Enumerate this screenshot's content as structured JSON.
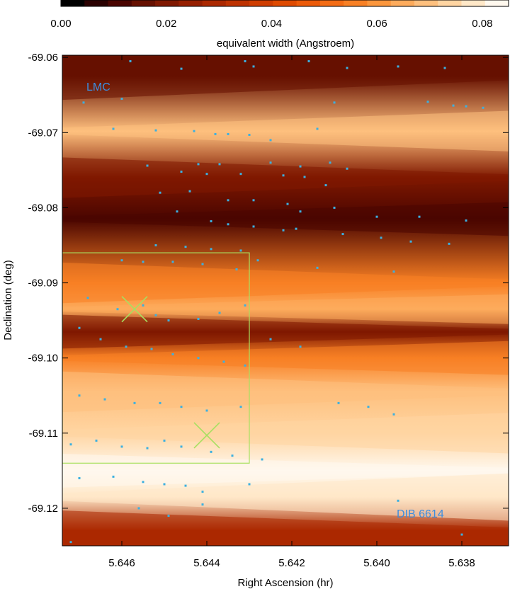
{
  "chart_data": {
    "type": "heatmap",
    "colorbar": {
      "label": "equivalent width (Angstroem)",
      "range": [
        0.0,
        0.085
      ],
      "ticks": [
        0.0,
        0.02,
        0.04,
        0.06,
        0.08
      ],
      "tick_labels": [
        "0.00",
        "0.02",
        "0.04",
        "0.06",
        "0.08"
      ],
      "colors": [
        "#000000",
        "#2a0000",
        "#4a0500",
        "#661000",
        "#7f1800",
        "#961f00",
        "#ab2800",
        "#be3200",
        "#cf3d00",
        "#df4a00",
        "#ec5a08",
        "#f46c14",
        "#f88024",
        "#fb963c",
        "#fdab5c",
        "#fec07e",
        "#ffd5a2",
        "#ffe8c8",
        "#fff8ee"
      ]
    },
    "xlabel": "Right Ascension (hr)",
    "ylabel": "Declination (deg)",
    "xlim": [
      5.6474,
      5.6369
    ],
    "ylim": [
      -69.125,
      -69.0597
    ],
    "x_ticks": [
      5.646,
      5.644,
      5.642,
      5.64,
      5.638
    ],
    "x_tick_labels": [
      "5.646",
      "5.644",
      "5.642",
      "5.640",
      "5.638"
    ],
    "y_ticks": [
      -69.06,
      -69.07,
      -69.08,
      -69.09,
      -69.1,
      -69.11,
      -69.12
    ],
    "y_tick_labels": [
      "-69.06",
      "-69.07",
      "-69.08",
      "-69.09",
      "-69.10",
      "-69.11",
      "-69.12"
    ],
    "annotations": {
      "region": "LMC",
      "line": "DIB 6614"
    },
    "box": {
      "ra": [
        5.6474,
        5.643
      ],
      "dec": [
        -69.114,
        -69.086
      ]
    },
    "crosses": [
      {
        "ra": 5.6457,
        "dec": -69.0935
      },
      {
        "ra": 5.644,
        "dec": -69.1103
      }
    ],
    "colors": {
      "points": "#3cb0e0",
      "annotation": "#3c8ee0",
      "box": "#a8e060",
      "cross": "#a8e060"
    },
    "bands": [
      {
        "dec": -69.0625,
        "ew": 0.012,
        "w": 0.0035
      },
      {
        "dec": -69.0698,
        "ew": 0.072,
        "w": 0.003
      },
      {
        "dec": -69.076,
        "ew": 0.018,
        "w": 0.003
      },
      {
        "dec": -69.0815,
        "ew": 0.01,
        "w": 0.0025
      },
      {
        "dec": -69.09,
        "ew": 0.055,
        "w": 0.003
      },
      {
        "dec": -69.0935,
        "ew": 0.068,
        "w": 0.0022
      },
      {
        "dec": -69.0965,
        "ew": 0.02,
        "w": 0.0025
      },
      {
        "dec": -69.1,
        "ew": 0.058,
        "w": 0.0025
      },
      {
        "dec": -69.1045,
        "ew": 0.07,
        "w": 0.003
      },
      {
        "dec": -69.11,
        "ew": 0.075,
        "w": 0.003
      },
      {
        "dec": -69.115,
        "ew": 0.083,
        "w": 0.0025
      },
      {
        "dec": -69.1185,
        "ew": 0.082,
        "w": 0.0035
      },
      {
        "dec": -69.123,
        "ew": 0.03,
        "w": 0.003
      }
    ],
    "fibers": [
      [
        5.6458,
        -69.0605
      ],
      [
        5.6431,
        -69.0605
      ],
      [
        5.6416,
        -69.0605
      ],
      [
        5.6446,
        -69.0615
      ],
      [
        5.6429,
        -69.0612
      ],
      [
        5.6407,
        -69.0614
      ],
      [
        5.6395,
        -69.0612
      ],
      [
        5.6384,
        -69.0614
      ],
      [
        5.6469,
        -69.066
      ],
      [
        5.646,
        -69.0655
      ],
      [
        5.641,
        -69.066
      ],
      [
        5.6388,
        -69.0659
      ],
      [
        5.6382,
        -69.0664
      ],
      [
        5.6379,
        -69.0665
      ],
      [
        5.6375,
        -69.0667
      ],
      [
        5.6462,
        -69.0695
      ],
      [
        5.6452,
        -69.0697
      ],
      [
        5.6443,
        -69.0698
      ],
      [
        5.6438,
        -69.0702
      ],
      [
        5.6435,
        -69.0702
      ],
      [
        5.643,
        -69.0703
      ],
      [
        5.6425,
        -69.071
      ],
      [
        5.6414,
        -69.0695
      ],
      [
        5.6454,
        -69.0744
      ],
      [
        5.6442,
        -69.0742
      ],
      [
        5.6437,
        -69.0742
      ],
      [
        5.6425,
        -69.074
      ],
      [
        5.6418,
        -69.0745
      ],
      [
        5.6411,
        -69.074
      ],
      [
        5.6407,
        -69.0748
      ],
      [
        5.6446,
        -69.0752
      ],
      [
        5.644,
        -69.0755
      ],
      [
        5.6432,
        -69.0755
      ],
      [
        5.6422,
        -69.0757
      ],
      [
        5.6417,
        -69.0759
      ],
      [
        5.6412,
        -69.077
      ],
      [
        5.6451,
        -69.078
      ],
      [
        5.6444,
        -69.0778
      ],
      [
        5.6435,
        -69.079
      ],
      [
        5.6429,
        -69.079
      ],
      [
        5.6421,
        -69.0795
      ],
      [
        5.6418,
        -69.0805
      ],
      [
        5.641,
        -69.08
      ],
      [
        5.64,
        -69.0812
      ],
      [
        5.639,
        -69.0812
      ],
      [
        5.6379,
        -69.0817
      ],
      [
        5.6447,
        -69.0805
      ],
      [
        5.6439,
        -69.0818
      ],
      [
        5.6435,
        -69.0822
      ],
      [
        5.6429,
        -69.0825
      ],
      [
        5.6422,
        -69.083
      ],
      [
        5.6419,
        -69.0828
      ],
      [
        5.6408,
        -69.0835
      ],
      [
        5.6399,
        -69.084
      ],
      [
        5.6392,
        -69.0845
      ],
      [
        5.6383,
        -69.0848
      ],
      [
        5.6452,
        -69.085
      ],
      [
        5.6445,
        -69.0852
      ],
      [
        5.6439,
        -69.0855
      ],
      [
        5.6432,
        -69.0857
      ],
      [
        5.6428,
        -69.087
      ],
      [
        5.646,
        -69.087
      ],
      [
        5.6455,
        -69.0872
      ],
      [
        5.6448,
        -69.0872
      ],
      [
        5.6441,
        -69.0875
      ],
      [
        5.6433,
        -69.0882
      ],
      [
        5.6414,
        -69.088
      ],
      [
        5.6396,
        -69.0885
      ],
      [
        5.6468,
        -69.092
      ],
      [
        5.6461,
        -69.0935
      ],
      [
        5.6455,
        -69.093
      ],
      [
        5.6452,
        -69.0943
      ],
      [
        5.6449,
        -69.095
      ],
      [
        5.6442,
        -69.0948
      ],
      [
        5.6437,
        -69.094
      ],
      [
        5.6431,
        -69.093
      ],
      [
        5.647,
        -69.096
      ],
      [
        5.6465,
        -69.0975
      ],
      [
        5.6459,
        -69.0985
      ],
      [
        5.6453,
        -69.0988
      ],
      [
        5.6448,
        -69.0995
      ],
      [
        5.6442,
        -69.1
      ],
      [
        5.6436,
        -69.1005
      ],
      [
        5.6431,
        -69.101
      ],
      [
        5.6425,
        -69.0975
      ],
      [
        5.6418,
        -69.0985
      ],
      [
        5.647,
        -69.105
      ],
      [
        5.6464,
        -69.1055
      ],
      [
        5.6457,
        -69.106
      ],
      [
        5.6451,
        -69.106
      ],
      [
        5.6446,
        -69.1065
      ],
      [
        5.644,
        -69.107
      ],
      [
        5.6432,
        -69.1065
      ],
      [
        5.6409,
        -69.106
      ],
      [
        5.6402,
        -69.1065
      ],
      [
        5.6396,
        -69.1075
      ],
      [
        5.6472,
        -69.1115
      ],
      [
        5.6466,
        -69.111
      ],
      [
        5.646,
        -69.1118
      ],
      [
        5.6454,
        -69.112
      ],
      [
        5.645,
        -69.111
      ],
      [
        5.6446,
        -69.1118
      ],
      [
        5.6439,
        -69.1125
      ],
      [
        5.6434,
        -69.113
      ],
      [
        5.6427,
        -69.1135
      ],
      [
        5.647,
        -69.116
      ],
      [
        5.6462,
        -69.1158
      ],
      [
        5.6455,
        -69.1165
      ],
      [
        5.645,
        -69.1168
      ],
      [
        5.6445,
        -69.117
      ],
      [
        5.6441,
        -69.1178
      ],
      [
        5.643,
        -69.1168
      ],
      [
        5.6456,
        -69.12
      ],
      [
        5.6449,
        -69.121
      ],
      [
        5.6441,
        -69.1195
      ],
      [
        5.6395,
        -69.119
      ],
      [
        5.638,
        -69.1235
      ],
      [
        5.6472,
        -69.1245
      ]
    ]
  }
}
